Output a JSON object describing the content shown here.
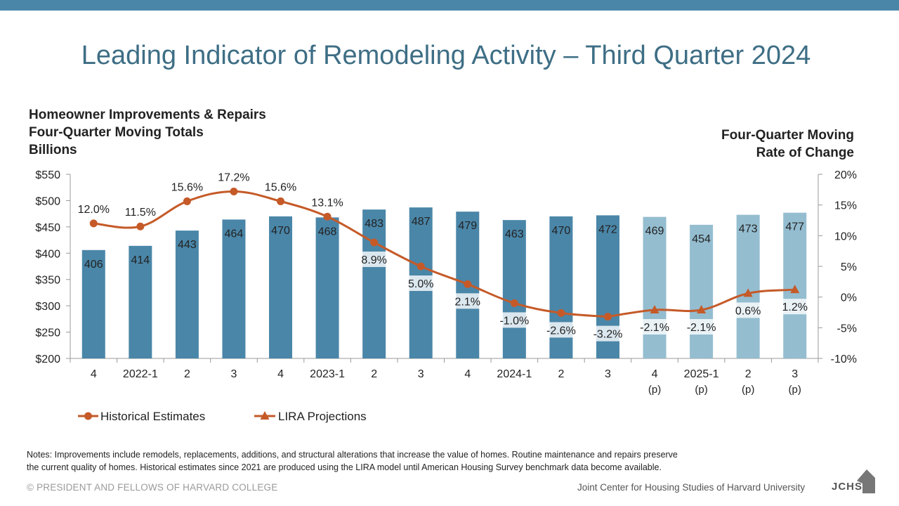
{
  "title": "Leading Indicator of Remodeling Activity – Third Quarter 2024",
  "left_axis_title": [
    "Homeowner Improvements & Repairs",
    "Four-Quarter Moving Totals",
    "Billions"
  ],
  "right_axis_title": [
    "Four-Quarter Moving",
    "Rate of Change"
  ],
  "notes": [
    "Notes: Improvements include remodels, replacements, additions, and structural alterations that increase the value of homes. Routine maintenance and repairs preserve",
    "the current quality of homes. Historical estimates since 2021 are produced using the LIRA model until American Housing Survey benchmark data become available."
  ],
  "footer": {
    "copyright": "© PRESIDENT AND FELLOWS OF HARVARD COLLEGE",
    "org": "Joint Center for Housing Studies of Harvard University",
    "logo_text": "JCHS"
  },
  "colors": {
    "topbar": "#4a86a8",
    "bar_historical": "#4a86a8",
    "bar_projection": "#94bdd0",
    "line": "#c55a28",
    "title": "#3e6e85"
  },
  "chart_data": {
    "type": "bar",
    "categories": [
      [
        "4"
      ],
      [
        "2022-1"
      ],
      [
        "2"
      ],
      [
        "3"
      ],
      [
        "4"
      ],
      [
        "2023-1"
      ],
      [
        "2"
      ],
      [
        "3"
      ],
      [
        "4"
      ],
      [
        "2024-1"
      ],
      [
        "2"
      ],
      [
        "3"
      ],
      [
        "4",
        "(p)"
      ],
      [
        "2025-1",
        "(p)"
      ],
      [
        "2",
        "(p)"
      ],
      [
        "3",
        "(p)"
      ]
    ],
    "bars": {
      "values": [
        406,
        414,
        443,
        464,
        470,
        468,
        483,
        487,
        479,
        463,
        470,
        472,
        469,
        454,
        473,
        477
      ],
      "labels": [
        "406",
        "414",
        "443",
        "464",
        "470",
        "468",
        "483",
        "487",
        "479",
        "463",
        "470",
        "472",
        "469",
        "454",
        "473",
        "477"
      ],
      "projection_start_index": 12
    },
    "series": [
      {
        "name": "Historical Estimates",
        "marker": "circle",
        "values": [
          12.0,
          11.5,
          15.6,
          17.2,
          15.6,
          13.1,
          8.9,
          5.0,
          2.1,
          -1.0,
          -2.6,
          -3.2,
          null,
          null,
          null,
          null
        ],
        "labels": [
          "12.0%",
          "11.5%",
          "15.6%",
          "17.2%",
          "15.6%",
          "13.1%",
          "8.9%",
          "5.0%",
          "2.1%",
          "-1.0%",
          "-2.6%",
          "-3.2%",
          "",
          "",
          "",
          ""
        ]
      },
      {
        "name": "LIRA Projections",
        "marker": "triangle",
        "values": [
          null,
          null,
          null,
          null,
          null,
          null,
          null,
          null,
          null,
          null,
          null,
          -3.2,
          -2.1,
          -2.1,
          0.6,
          1.2
        ],
        "labels": [
          "",
          "",
          "",
          "",
          "",
          "",
          "",
          "",
          "",
          "",
          "",
          "",
          "-2.1%",
          "-2.1%",
          "0.6%",
          "1.2%"
        ]
      }
    ],
    "y_left": {
      "min": 200,
      "max": 550,
      "ticks": [
        200,
        250,
        300,
        350,
        400,
        450,
        500,
        550
      ],
      "tick_labels": [
        "$200",
        "$250",
        "$300",
        "$350",
        "$400",
        "$450",
        "$500",
        "$550"
      ]
    },
    "y_right": {
      "min": -10,
      "max": 20,
      "ticks": [
        -10,
        -5,
        0,
        5,
        10,
        15,
        20
      ],
      "tick_labels": [
        "-10%",
        "-5%",
        "0%",
        "5%",
        "10%",
        "15%",
        "20%"
      ]
    },
    "grid": false,
    "legend_position": "bottom-left"
  }
}
